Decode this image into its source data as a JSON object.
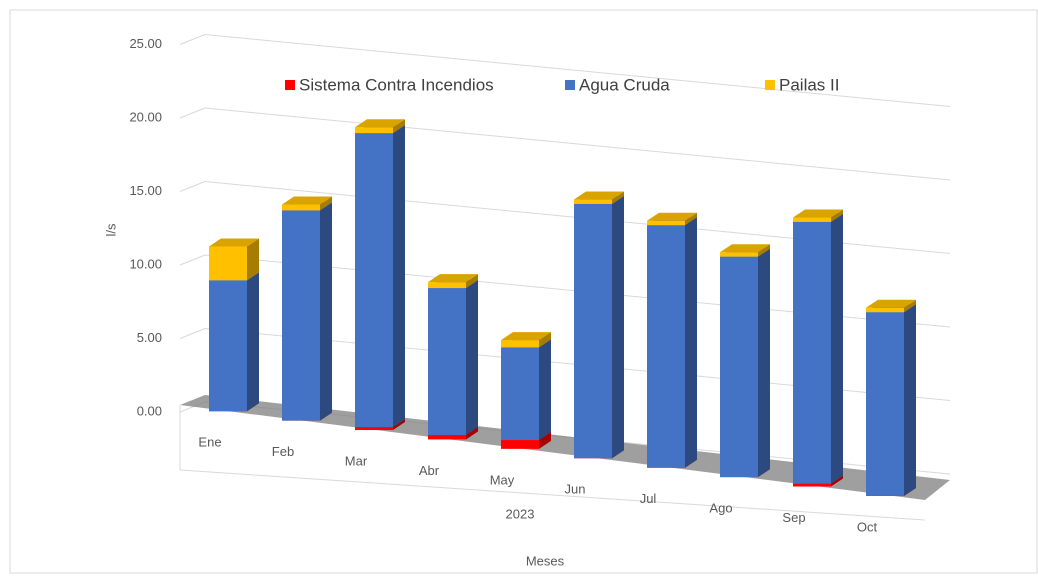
{
  "chart_data": {
    "type": "bar3d_stacked",
    "categories": [
      "Ene",
      "Feb",
      "Mar",
      "Abr",
      "May",
      "Jun",
      "Jul",
      "Ago",
      "Sep",
      "Oct"
    ],
    "group_label": "2023",
    "series": [
      {
        "name": "Sistema Contra Incendios",
        "color": "#ff0000",
        "values": [
          0,
          0,
          0.2,
          0.3,
          0.6,
          0,
          0,
          0,
          0.2,
          0
        ]
      },
      {
        "name": "Agua Cruda",
        "color": "#4472c4",
        "values": [
          8.9,
          14.3,
          20.0,
          10.0,
          6.3,
          17.3,
          16.5,
          15.0,
          17.8,
          12.5
        ]
      },
      {
        "name": "Pailas II",
        "color": "#ffc000",
        "values": [
          2.3,
          0.4,
          0.4,
          0.4,
          0.5,
          0.3,
          0.3,
          0.3,
          0.3,
          0.3
        ]
      }
    ],
    "ylim": [
      0,
      25
    ],
    "yticks": [
      {
        "value": 0,
        "label": "0.00"
      },
      {
        "value": 5,
        "label": "5.00"
      },
      {
        "value": 10,
        "label": "10.00"
      },
      {
        "value": 15,
        "label": "15.00"
      },
      {
        "value": 20,
        "label": "20.00"
      },
      {
        "value": 25,
        "label": "25.00"
      }
    ],
    "ylabel": "l/s",
    "xlabel": "Meses",
    "grid": true,
    "legend": "top"
  }
}
